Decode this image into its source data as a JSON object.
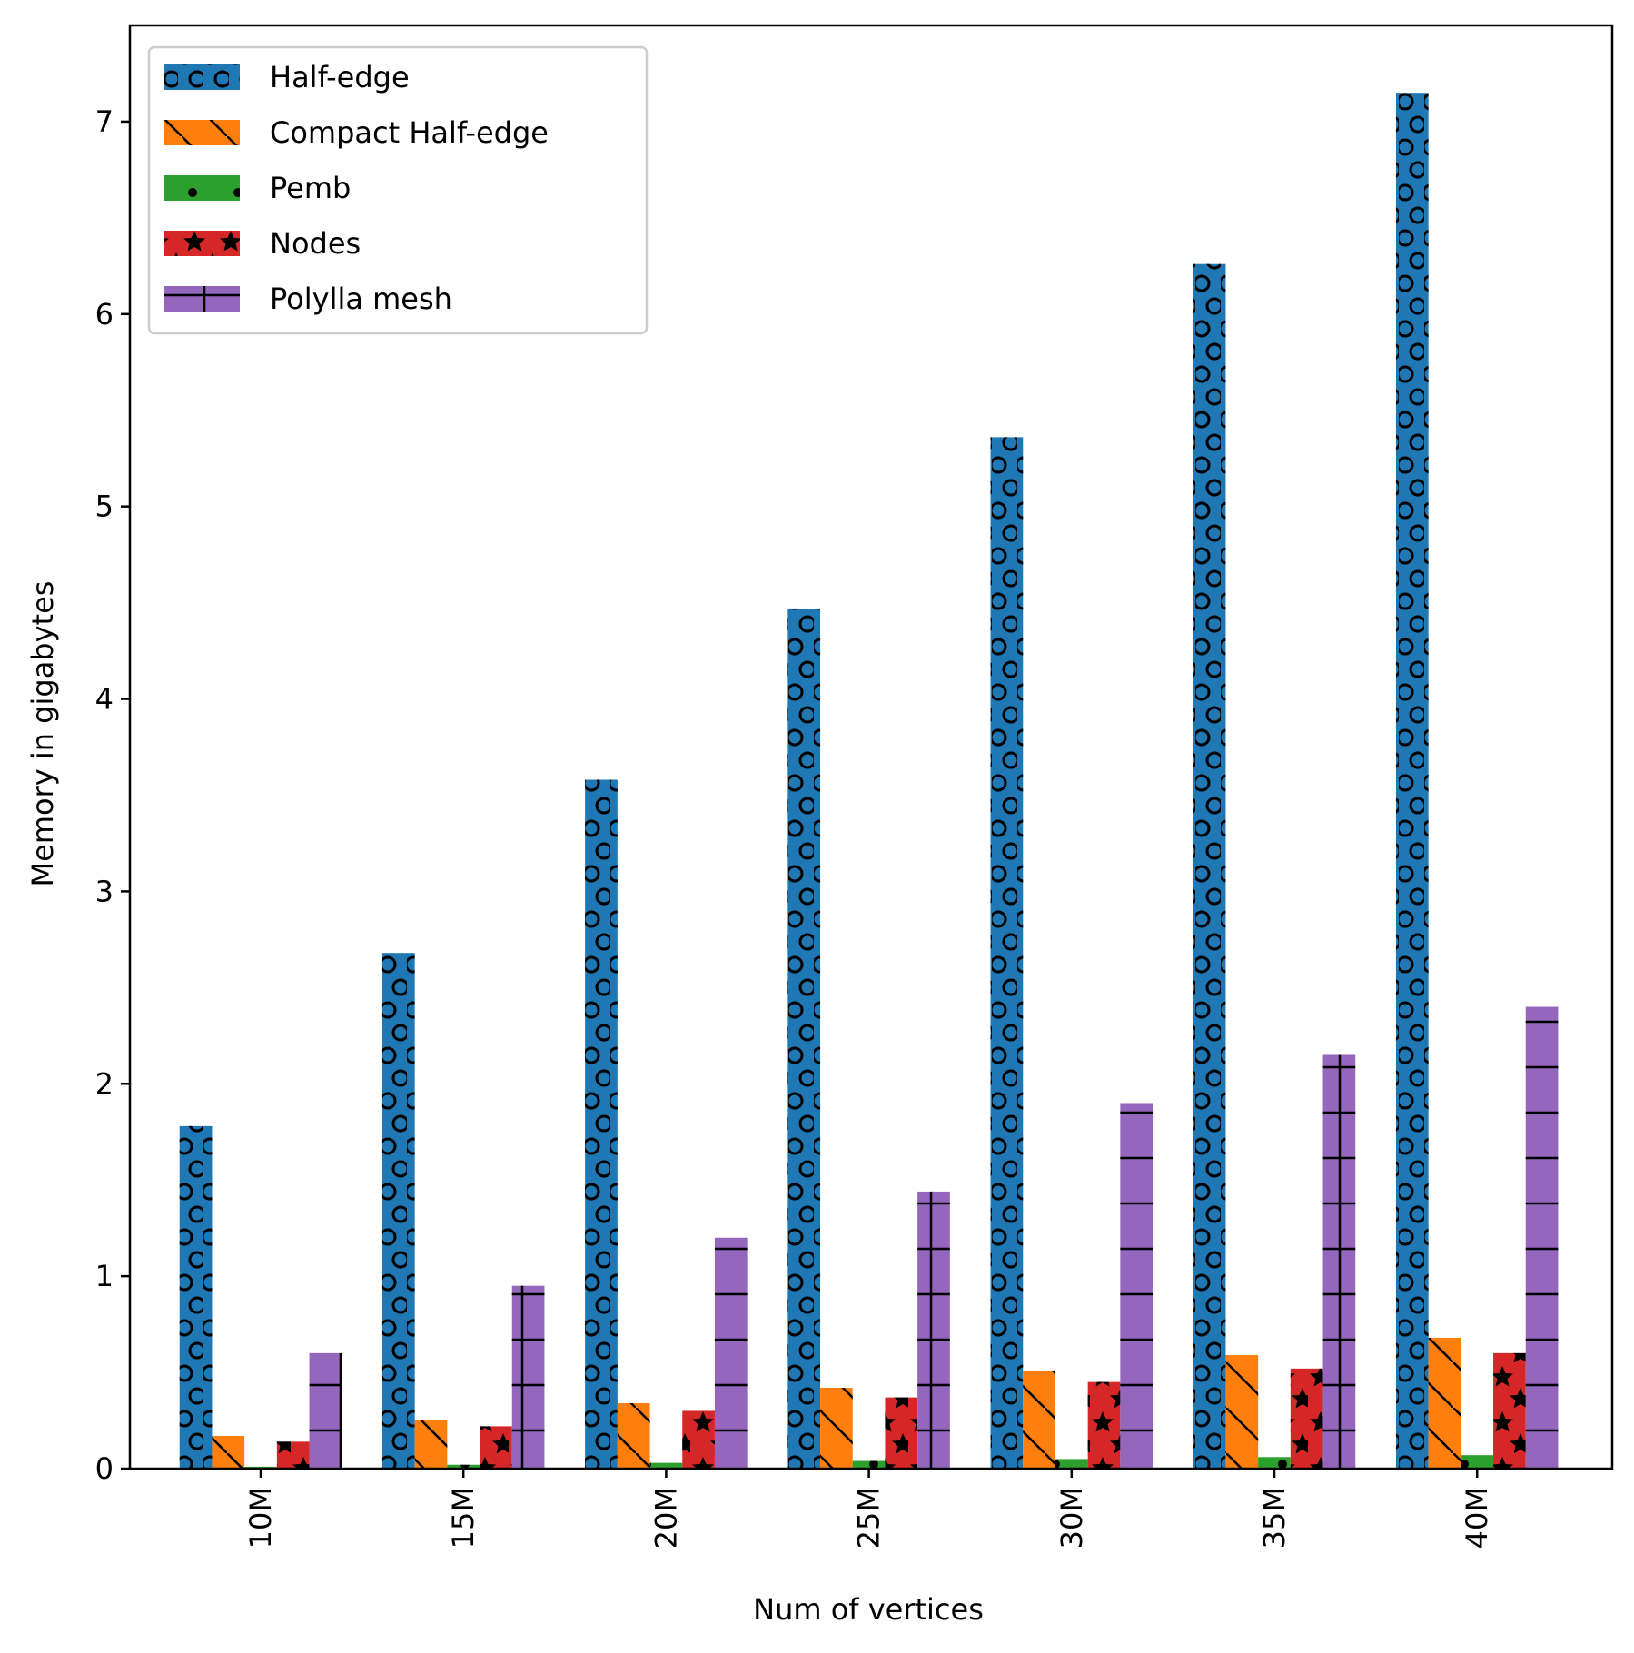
{
  "chart_data": {
    "type": "bar",
    "title": "",
    "xlabel": "Num of vertices",
    "ylabel": "Memory in gigabytes",
    "categories": [
      "10M",
      "15M",
      "20M",
      "25M",
      "30M",
      "35M",
      "40M"
    ],
    "ylim": [
      0,
      7.5
    ],
    "yticks": [
      0,
      1,
      2,
      3,
      4,
      5,
      6,
      7
    ],
    "grid": false,
    "legend_position": "top-left",
    "series": [
      {
        "name": "Half-edge",
        "color": "#1f77b4",
        "hatch": "circles",
        "values": [
          1.78,
          2.68,
          3.58,
          4.47,
          5.36,
          6.26,
          7.15
        ]
      },
      {
        "name": "Compact Half-edge",
        "color": "#ff7f0e",
        "hatch": "backslash",
        "values": [
          0.17,
          0.25,
          0.34,
          0.42,
          0.51,
          0.59,
          0.68
        ]
      },
      {
        "name": "Pemb",
        "color": "#2ca02c",
        "hatch": "dots",
        "values": [
          0.01,
          0.02,
          0.03,
          0.04,
          0.05,
          0.06,
          0.07
        ]
      },
      {
        "name": "Nodes",
        "color": "#d62728",
        "hatch": "stars",
        "values": [
          0.14,
          0.22,
          0.3,
          0.37,
          0.45,
          0.52,
          0.6
        ]
      },
      {
        "name": "Polylla mesh",
        "color": "#9467bd",
        "hatch": "plus",
        "values": [
          0.6,
          0.95,
          1.2,
          1.44,
          1.9,
          2.15,
          2.4
        ]
      }
    ]
  }
}
